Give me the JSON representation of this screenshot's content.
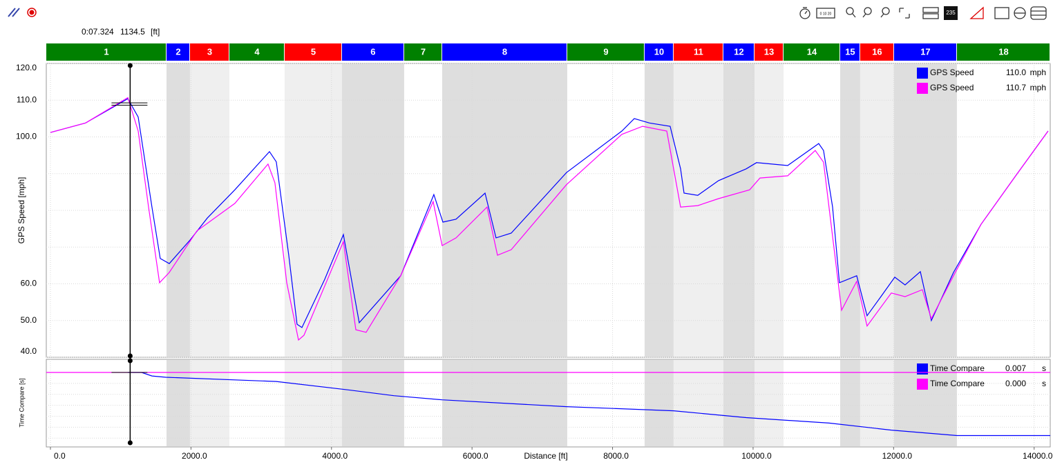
{
  "toolbar": {
    "ruler": "0 10 20",
    "badge": "235"
  },
  "cursor": {
    "time": "0:07.324",
    "distance": 1134.5,
    "unit": "[ft]"
  },
  "sectors": [
    {
      "label": "1",
      "start": -59,
      "end": 1652,
      "color": "#008000"
    },
    {
      "label": "2",
      "start": 1652,
      "end": 1986,
      "color": "#0000ff"
    },
    {
      "label": "3",
      "start": 1986,
      "end": 2547,
      "color": "#ff0000"
    },
    {
      "label": "4",
      "start": 2547,
      "end": 3333,
      "color": "#008000"
    },
    {
      "label": "5",
      "start": 3333,
      "end": 4149,
      "color": "#ff0000"
    },
    {
      "label": "6",
      "start": 4149,
      "end": 5034,
      "color": "#0000ff"
    },
    {
      "label": "7",
      "start": 5034,
      "end": 5575,
      "color": "#008000"
    },
    {
      "label": "8",
      "start": 5575,
      "end": 7355,
      "color": "#0000ff"
    },
    {
      "label": "9",
      "start": 7355,
      "end": 8456,
      "color": "#008000"
    },
    {
      "label": "10",
      "start": 8456,
      "end": 8869,
      "color": "#0000ff"
    },
    {
      "label": "11",
      "start": 8869,
      "end": 9577,
      "color": "#ff0000"
    },
    {
      "label": "12",
      "start": 9577,
      "end": 10020,
      "color": "#0000ff"
    },
    {
      "label": "13",
      "start": 10020,
      "end": 10433,
      "color": "#ff0000"
    },
    {
      "label": "14",
      "start": 10433,
      "end": 11239,
      "color": "#008000"
    },
    {
      "label": "15",
      "start": 11239,
      "end": 11524,
      "color": "#0000ff"
    },
    {
      "label": "16",
      "start": 11524,
      "end": 12006,
      "color": "#ff0000"
    },
    {
      "label": "17",
      "start": 12006,
      "end": 12901,
      "color": "#0000ff"
    },
    {
      "label": "18",
      "start": 12901,
      "end": 14229,
      "color": "#008000"
    }
  ],
  "chart_data": [
    {
      "type": "line",
      "y_label": "GPS Speed [mph]",
      "xlim": [
        -59,
        14229
      ],
      "ylim": [
        40,
        120
      ],
      "grid": true,
      "yticks": [
        {
          "value": 40,
          "label": "40.0"
        },
        {
          "value": 50,
          "label": "50.0"
        },
        {
          "value": 60,
          "label": "60.0"
        },
        {
          "value": 70,
          "label": null
        },
        {
          "value": 80,
          "label": null
        },
        {
          "value": 90,
          "label": null
        },
        {
          "value": 100,
          "label": "100.0"
        },
        {
          "value": 110,
          "label": "110.0"
        },
        {
          "value": 120,
          "label": "120.0"
        }
      ],
      "series": [
        {
          "name": "GPS Speed",
          "color": "#0000ff",
          "readout": "110.0",
          "unit": "mph",
          "x": [
            0,
            500,
            1101,
            1249,
            1445,
            1563,
            1691,
            1986,
            2232,
            2625,
            3117,
            3215,
            3392,
            3510,
            3579,
            3903,
            4169,
            4395,
            4985,
            5457,
            5585,
            5772,
            6185,
            6342,
            6558,
            7345,
            8132,
            8309,
            8525,
            8820,
            8968,
            9017,
            9213,
            9508,
            9902,
            10049,
            10492,
            10934,
            11003,
            11131,
            11229,
            11475,
            11622,
            11819,
            12016,
            12163,
            12380,
            12537,
            12852,
            13245,
            13737,
            14199
          ],
          "values": [
            101.2,
            103.8,
            110.4,
            105.4,
            80.9,
            66.9,
            65.5,
            71.9,
            77.9,
            85.6,
            96,
            93.2,
            67.8,
            49,
            48.1,
            61.2,
            73.4,
            49.4,
            62.2,
            84.3,
            76.8,
            77.6,
            84.7,
            72.5,
            73.8,
            90.3,
            101.6,
            105,
            103.8,
            102.9,
            91.3,
            84.7,
            84.1,
            88.1,
            91.3,
            93,
            92.2,
            98.2,
            96.3,
            80.9,
            60.3,
            62.2,
            51.3,
            56.5,
            61.8,
            59.7,
            63.3,
            50,
            63.1,
            76.2,
            89.4,
            101.6
          ]
        },
        {
          "name": "GPS Speed",
          "color": "#ff00ff",
          "readout": "110.7",
          "unit": "mph",
          "x": [
            0,
            500,
            1101,
            1249,
            1396,
            1553,
            1691,
            2085,
            2625,
            3097,
            3195,
            3363,
            3530,
            3608,
            4169,
            4346,
            4493,
            4985,
            5447,
            5575,
            5772,
            6214,
            6362,
            6558,
            7345,
            8132,
            8427,
            8771,
            8968,
            9213,
            9508,
            9951,
            10098,
            10492,
            10885,
            11003,
            11259,
            11475,
            11622,
            11967,
            12163,
            12409,
            12537,
            12852,
            13245,
            13737,
            14199
          ],
          "values": [
            101.2,
            103.8,
            110.7,
            101.6,
            80.9,
            60.3,
            63.1,
            74.4,
            81.9,
            92.6,
            87.5,
            60.3,
            44.7,
            46,
            71.5,
            47.5,
            46.8,
            62.2,
            82.4,
            70.4,
            72.5,
            80.9,
            67.8,
            69.3,
            87,
            100.7,
            102.9,
            101.6,
            80.9,
            81.3,
            83.2,
            85.6,
            88.8,
            89.4,
            96.3,
            93.1,
            52.8,
            60.7,
            48.5,
            57.5,
            56.5,
            58.4,
            50.5,
            62.2,
            76.2,
            89.4,
            101.6
          ]
        }
      ]
    },
    {
      "type": "line",
      "y_label": "Time Compare [s]",
      "x_label": "Distance [ft]",
      "xlim": [
        -59,
        14229
      ],
      "ylim": [
        -3.4,
        0.6
      ],
      "grid": true,
      "ygrid": [
        0,
        -0.5,
        -1,
        -1.5,
        -2,
        -2.5,
        -3
      ],
      "xticks": [
        {
          "value": 0,
          "label": "0.0"
        },
        {
          "value": 2000,
          "label": "2000.0"
        },
        {
          "value": 4000,
          "label": "4000.0"
        },
        {
          "value": 6000,
          "label": "6000.0"
        },
        {
          "value": 8000,
          "label": "8000.0"
        },
        {
          "value": 10000,
          "label": "10000.0"
        },
        {
          "value": 12000,
          "label": "12000.0"
        },
        {
          "value": 14000,
          "label": "14000.0"
        }
      ],
      "series": [
        {
          "name": "Time Compare",
          "color": "#0000ff",
          "readout": "0.007",
          "unit": "s",
          "x": [
            1101,
            1298,
            1445,
            1642,
            3215,
            4198,
            4887,
            5575,
            7345,
            8869,
            9902,
            11081,
            11967,
            12901,
            14229
          ],
          "values": [
            0,
            0,
            -0.16,
            -0.22,
            -0.41,
            -0.78,
            -1.06,
            -1.25,
            -1.56,
            -1.75,
            -2.06,
            -2.31,
            -2.63,
            -2.88,
            -2.88
          ]
        },
        {
          "name": "Time Compare",
          "color": "#ff00ff",
          "readout": "0.000",
          "unit": "s",
          "x": [
            -59,
            14229
          ],
          "values": [
            0,
            0
          ]
        }
      ]
    }
  ]
}
